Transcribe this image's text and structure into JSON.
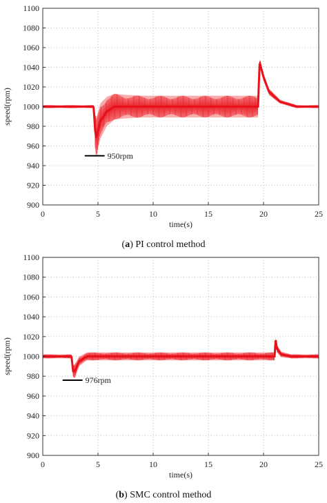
{
  "chart_data": [
    {
      "type": "line",
      "caption": {
        "letter": "a",
        "text": "PI control method"
      },
      "xlabel": "time(s)",
      "ylabel": "speed(rpm)",
      "xlim": [
        0,
        25
      ],
      "ylim": [
        900,
        1100
      ],
      "xticks": [
        0,
        5,
        10,
        15,
        20,
        25
      ],
      "yticks": [
        900,
        920,
        940,
        960,
        980,
        1000,
        1020,
        1040,
        1060,
        1080,
        1100
      ],
      "grid": true,
      "color": "#e8101a",
      "band_color": "#f26a6a",
      "series": [
        {
          "x": [
            0,
            4.6,
            4.75,
            4.85,
            5.2,
            5.8,
            6.5,
            7.5,
            9,
            12,
            15,
            19,
            19.5,
            19.65,
            20,
            20.5,
            21.5,
            23,
            25
          ],
          "y": [
            1000,
            1000,
            975,
            968,
            985,
            995,
            1000,
            1000,
            1000,
            1000,
            1000,
            1000,
            1000,
            1045,
            1030,
            1015,
            1005,
            1000,
            1000
          ],
          "spread": [
            1.5,
            1.5,
            18,
            20,
            18,
            15,
            13,
            12,
            11,
            11,
            11,
            11,
            11,
            4,
            4,
            3,
            2,
            1.5,
            1.5
          ]
        }
      ],
      "annotation": {
        "label": "950rpm",
        "x": [
          3.8,
          5.6
        ],
        "y": 950
      }
    },
    {
      "type": "line",
      "caption": {
        "letter": "b",
        "text": "SMC control method"
      },
      "xlabel": "time(s)",
      "ylabel": "speed(rpm)",
      "xlim": [
        0,
        25
      ],
      "ylim": [
        900,
        1100
      ],
      "xticks": [
        0,
        5,
        10,
        15,
        20,
        25
      ],
      "yticks": [
        900,
        920,
        940,
        960,
        980,
        1000,
        1020,
        1040,
        1060,
        1080,
        1100
      ],
      "grid": true,
      "color": "#e8101a",
      "band_color": "#f26a6a",
      "series": [
        {
          "x": [
            0,
            2.6,
            2.75,
            2.9,
            3.3,
            4,
            5,
            10,
            15,
            21,
            21.1,
            21.2,
            21.6,
            22.5,
            25
          ],
          "y": [
            1000,
            1000,
            985,
            985,
            995,
            1000,
            1000,
            1000,
            1000,
            1000,
            1017,
            1008,
            1002,
            1000,
            1000
          ],
          "spread": [
            2,
            2,
            6,
            7,
            5,
            4,
            4,
            4,
            4,
            4,
            3,
            4,
            3,
            2,
            2
          ]
        }
      ],
      "annotation": {
        "label": "976rpm",
        "x": [
          1.8,
          3.6
        ],
        "y": 976
      }
    }
  ]
}
